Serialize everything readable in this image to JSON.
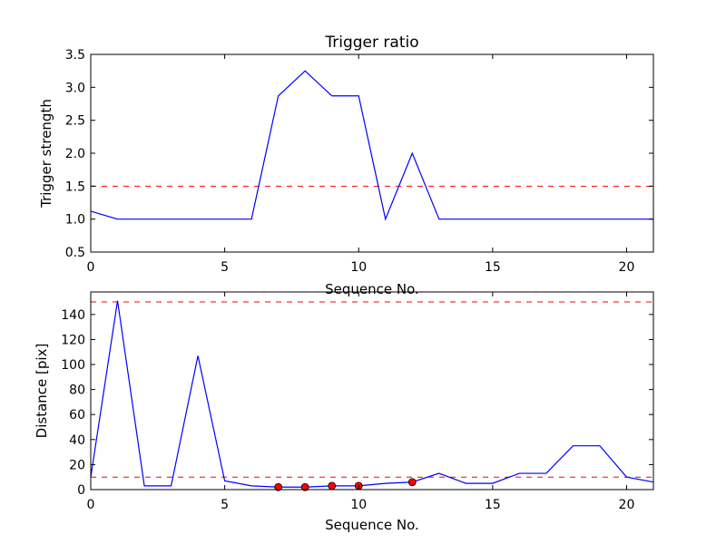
{
  "chart_data": [
    {
      "type": "line",
      "title": "Trigger ratio",
      "xlabel": "Sequence No.",
      "ylabel": "Trigger strength",
      "xlim": [
        0,
        21
      ],
      "ylim": [
        0.5,
        3.5
      ],
      "xticks": [
        0,
        5,
        10,
        15,
        20
      ],
      "yticks": [
        0.5,
        1.0,
        1.5,
        2.0,
        2.5,
        3.0,
        3.5
      ],
      "ytick_labels": [
        "0.5",
        "1.0",
        "1.5",
        "2.0",
        "2.5",
        "3.0",
        "3.5"
      ],
      "grid": false,
      "series": [
        {
          "color": "#0000ff",
          "x": [
            0,
            1,
            2,
            3,
            4,
            5,
            6,
            7,
            8,
            9,
            10,
            11,
            12,
            13,
            14,
            15,
            16,
            17,
            18,
            19,
            20,
            21
          ],
          "y": [
            1.12,
            1.0,
            1.0,
            1.0,
            1.0,
            1.0,
            1.0,
            2.87,
            3.25,
            2.87,
            2.87,
            1.0,
            2.0,
            1.0,
            1.0,
            1.0,
            1.0,
            1.0,
            1.0,
            1.0,
            1.0,
            1.0
          ]
        }
      ],
      "hlines": [
        {
          "y": 1.5,
          "color": "#ff0000",
          "style": "dashed"
        }
      ]
    },
    {
      "type": "line",
      "title": "",
      "xlabel": "Sequence No.",
      "ylabel": "Distance [pix]",
      "xlim": [
        0,
        21
      ],
      "ylim": [
        0,
        158
      ],
      "xticks": [
        0,
        5,
        10,
        15,
        20
      ],
      "yticks": [
        0,
        20,
        40,
        60,
        80,
        100,
        120,
        140
      ],
      "ytick_labels": [
        "0",
        "20",
        "40",
        "60",
        "80",
        "100",
        "120",
        "140"
      ],
      "grid": false,
      "series": [
        {
          "color": "#0000ff",
          "x": [
            0,
            1,
            2,
            3,
            4,
            5,
            6,
            7,
            8,
            9,
            10,
            11,
            12,
            13,
            14,
            15,
            16,
            17,
            18,
            19,
            20,
            21
          ],
          "y": [
            10,
            151,
            3,
            3,
            107,
            7,
            3,
            2,
            2,
            3,
            3,
            5,
            6,
            13,
            5,
            5,
            13,
            13,
            35,
            35,
            10,
            6
          ]
        }
      ],
      "markers": {
        "color": "#ff0000",
        "x": [
          7,
          8,
          9,
          10,
          12
        ],
        "y": [
          2,
          2,
          3,
          3,
          6
        ]
      },
      "hlines": [
        {
          "y": 150,
          "color": "#ff0000",
          "style": "dashed"
        },
        {
          "y": 10,
          "color": "#ff0000",
          "style": "dashed"
        }
      ]
    }
  ]
}
